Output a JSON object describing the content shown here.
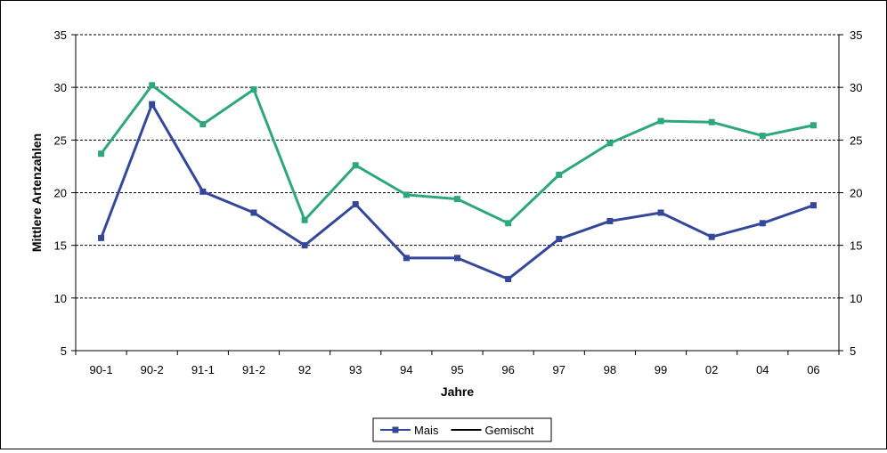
{
  "chart_data": {
    "type": "line",
    "title": "",
    "xlabel": "Jahre",
    "ylabel": "Mittlere Artenzahlen",
    "ylim": [
      5,
      35
    ],
    "y_ticks": [
      5,
      10,
      15,
      20,
      25,
      30,
      35
    ],
    "y_ticks_right": [
      5,
      10,
      15,
      20,
      25,
      30,
      35
    ],
    "grid": "horizontal dashed",
    "legend_position": "bottom-center",
    "categories": [
      "90-1",
      "90-2",
      "91-1",
      "91-2",
      "92",
      "93",
      "94",
      "95",
      "96",
      "97",
      "98",
      "99",
      "02",
      "04",
      "06"
    ],
    "series": [
      {
        "name": "Mais",
        "color": "#35479a",
        "values": [
          15.7,
          28.4,
          20.1,
          18.1,
          15.0,
          18.9,
          13.8,
          13.8,
          11.8,
          15.6,
          17.3,
          18.1,
          15.8,
          17.1,
          18.8
        ]
      },
      {
        "name": "Gemischt",
        "color": "#2ea77f",
        "values": [
          23.7,
          30.2,
          26.5,
          29.8,
          17.4,
          22.6,
          19.8,
          19.4,
          17.1,
          21.7,
          24.7,
          26.8,
          26.7,
          25.4,
          26.4
        ]
      }
    ],
    "legend": [
      {
        "label": "Mais",
        "line_color": "#35479a",
        "marker": "square"
      },
      {
        "label": "Gemischt",
        "line_color": "#000000",
        "marker": "none"
      }
    ]
  }
}
